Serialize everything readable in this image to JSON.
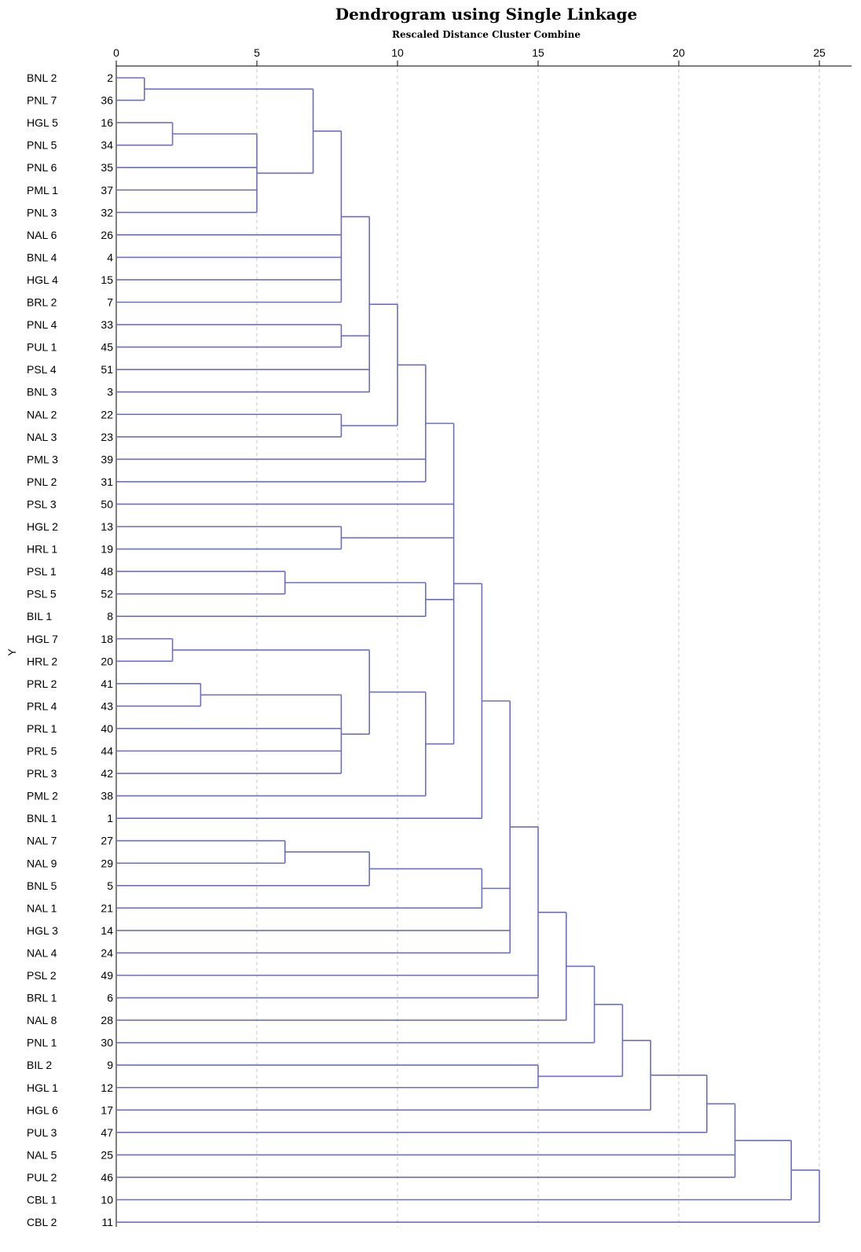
{
  "chart_data": {
    "type": "dendrogram",
    "title": "Dendrogram using Single Linkage",
    "subtitle": "Rescaled Distance Cluster Combine",
    "ylabel": "Y",
    "xlim": [
      0,
      25
    ],
    "x_ticks": [
      0,
      5,
      10,
      15,
      20,
      25
    ],
    "grid": true,
    "line_color": "#6b6fc4",
    "leaves": [
      {
        "label": "BNL 2",
        "case": "2"
      },
      {
        "label": "PNL 7",
        "case": "36"
      },
      {
        "label": "HGL 5",
        "case": "16"
      },
      {
        "label": "PNL 5",
        "case": "34"
      },
      {
        "label": "PNL 6",
        "case": "35"
      },
      {
        "label": "PML  1",
        "case": "37"
      },
      {
        "label": "PNL 3",
        "case": "32"
      },
      {
        "label": "NAL 6",
        "case": "26"
      },
      {
        "label": "BNL 4",
        "case": "4"
      },
      {
        "label": "HGL 4",
        "case": "15"
      },
      {
        "label": "BRL 2",
        "case": "7"
      },
      {
        "label": "PNL 4",
        "case": "33"
      },
      {
        "label": "PUL 1",
        "case": "45"
      },
      {
        "label": "PSL 4",
        "case": "51"
      },
      {
        "label": "BNL 3",
        "case": "3"
      },
      {
        "label": "NAL 2",
        "case": "22"
      },
      {
        "label": "NAL 3",
        "case": "23"
      },
      {
        "label": "PML  3",
        "case": "39"
      },
      {
        "label": "PNL 2",
        "case": "31"
      },
      {
        "label": "PSL 3",
        "case": "50"
      },
      {
        "label": "HGL 2",
        "case": "13"
      },
      {
        "label": "HRL 1",
        "case": "19"
      },
      {
        "label": "PSL 1",
        "case": "48"
      },
      {
        "label": "PSL 5",
        "case": "52"
      },
      {
        "label": "BIL 1",
        "case": "8"
      },
      {
        "label": "HGL 7",
        "case": "18"
      },
      {
        "label": "HRL 2",
        "case": "20"
      },
      {
        "label": "PRL 2",
        "case": "41"
      },
      {
        "label": "PRL 4",
        "case": "43"
      },
      {
        "label": "PRL 1",
        "case": "40"
      },
      {
        "label": "PRL 5",
        "case": "44"
      },
      {
        "label": "PRL 3",
        "case": "42"
      },
      {
        "label": "PML  2",
        "case": "38"
      },
      {
        "label": "BNL 1",
        "case": "1"
      },
      {
        "label": "NAL 7",
        "case": "27"
      },
      {
        "label": "NAL 9",
        "case": "29"
      },
      {
        "label": "BNL 5",
        "case": "5"
      },
      {
        "label": "NAL 1",
        "case": "21"
      },
      {
        "label": "HGL 3",
        "case": "14"
      },
      {
        "label": "NAL 4",
        "case": "24"
      },
      {
        "label": "PSL 2",
        "case": "49"
      },
      {
        "label": "BRL 1",
        "case": "6"
      },
      {
        "label": "NAL 8",
        "case": "28"
      },
      {
        "label": "PNL 1",
        "case": "30"
      },
      {
        "label": "BIL 2",
        "case": "9"
      },
      {
        "label": "HGL 1",
        "case": "12"
      },
      {
        "label": "HGL 6",
        "case": "17"
      },
      {
        "label": "PUL 3",
        "case": "47"
      },
      {
        "label": "NAL 5",
        "case": "25"
      },
      {
        "label": "PUL 2",
        "case": "46"
      },
      {
        "label": "CBL 1",
        "case": "10"
      },
      {
        "label": "CBL 2",
        "case": "11"
      }
    ],
    "merges": [
      {
        "id": "a",
        "members": [
          "BNL 2",
          "PNL 7"
        ],
        "distance": 1
      },
      {
        "id": "b",
        "members": [
          "HGL 5",
          "PNL 5"
        ],
        "distance": 2
      },
      {
        "id": "c",
        "members": [
          "b",
          "PNL 6",
          "PML  1",
          "PNL 3"
        ],
        "distance": 5
      },
      {
        "id": "d",
        "members": [
          "a",
          "c"
        ],
        "distance": 7
      },
      {
        "id": "e",
        "members": [
          "d",
          "NAL 6",
          "BNL 4",
          "HGL 4",
          "BRL 2"
        ],
        "distance": 8
      },
      {
        "id": "f",
        "members": [
          "PNL 4",
          "PUL 1"
        ],
        "distance": 8
      },
      {
        "id": "g",
        "members": [
          "e",
          "f",
          "PSL 4",
          "BNL 3"
        ],
        "distance": 9
      },
      {
        "id": "h",
        "members": [
          "NAL 2",
          "NAL 3"
        ],
        "distance": 8
      },
      {
        "id": "i",
        "members": [
          "g",
          "h"
        ],
        "distance": 10
      },
      {
        "id": "j",
        "members": [
          "i",
          "PML  3",
          "PNL 2"
        ],
        "distance": 11
      },
      {
        "id": "k",
        "members": [
          "HGL 2",
          "HRL 1"
        ],
        "distance": 8
      },
      {
        "id": "l",
        "members": [
          "PSL 1",
          "PSL 5"
        ],
        "distance": 6
      },
      {
        "id": "m",
        "members": [
          "l",
          "BIL 1"
        ],
        "distance": 11
      },
      {
        "id": "n",
        "members": [
          "HGL 7",
          "HRL 2"
        ],
        "distance": 2
      },
      {
        "id": "o",
        "members": [
          "PRL 2",
          "PRL 4"
        ],
        "distance": 3
      },
      {
        "id": "p",
        "members": [
          "o",
          "PRL 1",
          "PRL 5",
          "PRL 3"
        ],
        "distance": 8
      },
      {
        "id": "q",
        "members": [
          "n",
          "p"
        ],
        "distance": 9
      },
      {
        "id": "r",
        "members": [
          "q",
          "PML  2"
        ],
        "distance": 11
      },
      {
        "id": "s",
        "members": [
          "j",
          "PSL 3",
          "k",
          "m",
          "r"
        ],
        "distance": 12
      },
      {
        "id": "t",
        "members": [
          "s",
          "BNL 1"
        ],
        "distance": 13
      },
      {
        "id": "u",
        "members": [
          "NAL 7",
          "NAL 9"
        ],
        "distance": 6
      },
      {
        "id": "v",
        "members": [
          "u",
          "BNL 5"
        ],
        "distance": 9
      },
      {
        "id": "w",
        "members": [
          "v",
          "NAL 1"
        ],
        "distance": 13
      },
      {
        "id": "x",
        "members": [
          "t",
          "w",
          "HGL 3",
          "NAL 4"
        ],
        "distance": 14
      },
      {
        "id": "y",
        "members": [
          "x",
          "PSL 2",
          "BRL 1"
        ],
        "distance": 15
      },
      {
        "id": "z",
        "members": [
          "y",
          "NAL 8"
        ],
        "distance": 16
      },
      {
        "id": "aa",
        "members": [
          "z",
          "PNL 1"
        ],
        "distance": 17
      },
      {
        "id": "bb",
        "members": [
          "BIL 2",
          "HGL 1"
        ],
        "distance": 15
      },
      {
        "id": "cc",
        "members": [
          "aa",
          "bb"
        ],
        "distance": 18
      },
      {
        "id": "dd",
        "members": [
          "cc",
          "HGL 6"
        ],
        "distance": 19
      },
      {
        "id": "ee",
        "members": [
          "dd",
          "PUL 3"
        ],
        "distance": 21
      },
      {
        "id": "ff",
        "members": [
          "ee",
          "NAL 5",
          "PUL 2"
        ],
        "distance": 22
      },
      {
        "id": "gg",
        "members": [
          "ff",
          "CBL 1"
        ],
        "distance": 24
      },
      {
        "id": "hh",
        "members": [
          "gg",
          "CBL 2"
        ],
        "distance": 25
      }
    ]
  }
}
